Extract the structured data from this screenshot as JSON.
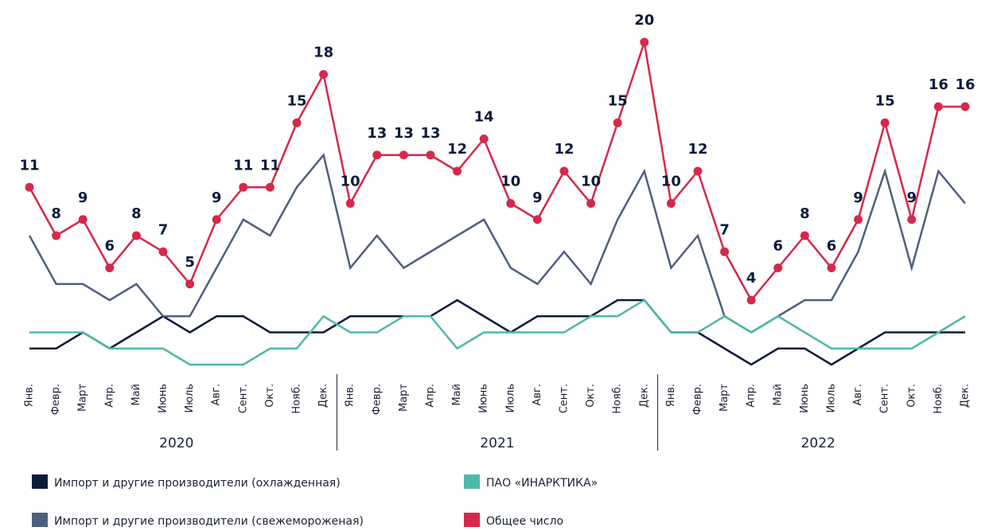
{
  "chart_data": {
    "type": "line",
    "categories": [
      "Янв.",
      "Февр.",
      "Март",
      "Апр.",
      "Май",
      "Июнь",
      "Июль",
      "Авг.",
      "Сент.",
      "Окт.",
      "Нояб.",
      "Дек.",
      "Янв.",
      "Февр.",
      "Март",
      "Апр.",
      "Май",
      "Июнь",
      "Июль",
      "Авг.",
      "Сент.",
      "Окт.",
      "Нояб.",
      "Дек.",
      "Янв.",
      "Февр.",
      "Март",
      "Апр.",
      "Май",
      "Июнь",
      "Июль",
      "Авг.",
      "Сент.",
      "Окт.",
      "Нояб.",
      "Дек."
    ],
    "years": [
      "2020",
      "2021",
      "2022"
    ],
    "series": [
      {
        "name": "Импорт и другие производители (охлажденная)",
        "color": "#0d1b3a",
        "values": [
          1,
          1,
          2,
          1,
          2,
          3,
          2,
          3,
          3,
          2,
          2,
          2,
          3,
          3,
          3,
          3,
          4,
          3,
          2,
          3,
          3,
          3,
          4,
          4,
          2,
          2,
          1,
          0,
          1,
          1,
          0,
          1,
          2,
          2,
          2,
          2
        ]
      },
      {
        "name": "Импорт и другие производители (свежемороженая)",
        "color": "#4f5f7e",
        "values": [
          8,
          5,
          5,
          4,
          5,
          3,
          3,
          6,
          9,
          8,
          11,
          13,
          6,
          8,
          6,
          7,
          8,
          9,
          6,
          5,
          7,
          5,
          9,
          12,
          6,
          8,
          3,
          2,
          3,
          4,
          4,
          7,
          12,
          6,
          12,
          10
        ]
      },
      {
        "name": "ПАО «ИНАРКТИКА»",
        "color": "#4fb8a8",
        "values": [
          2,
          2,
          2,
          1,
          1,
          1,
          0,
          0,
          0,
          1,
          1,
          3,
          2,
          2,
          3,
          3,
          1,
          2,
          2,
          2,
          2,
          3,
          3,
          4,
          2,
          2,
          3,
          2,
          3,
          2,
          1,
          1,
          1,
          1,
          2,
          3
        ]
      },
      {
        "name": "Общее число",
        "color": "#d6284a",
        "labels": true,
        "values": [
          11,
          8,
          9,
          6,
          8,
          7,
          5,
          9,
          11,
          11,
          15,
          18,
          10,
          13,
          13,
          13,
          12,
          14,
          10,
          9,
          12,
          10,
          15,
          20,
          10,
          12,
          7,
          4,
          6,
          8,
          6,
          9,
          15,
          9,
          16,
          16
        ]
      }
    ]
  }
}
